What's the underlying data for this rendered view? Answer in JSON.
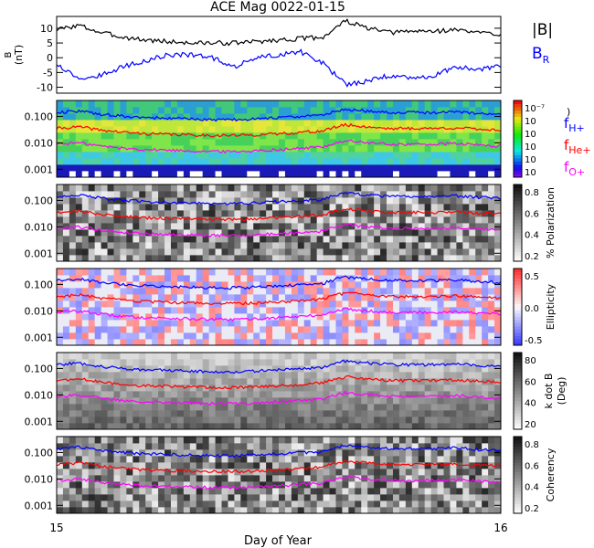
{
  "title": "ACE Mag 0022-01-15",
  "xaxis": {
    "label": "Day of Year",
    "ticks": [
      {
        "value": 15,
        "label": "15"
      },
      {
        "value": 16,
        "label": "16"
      }
    ],
    "range": [
      15,
      16
    ]
  },
  "colors": {
    "total_field": "#000000",
    "radial": "#0000ff",
    "h": "#0000ff",
    "he": "#ff0000",
    "o": "#ff00ff"
  },
  "chart_data": [
    {
      "type": "line",
      "ylabel_line1": "B",
      "ylabel_line2": "(nT)",
      "ylim": [
        -12,
        14
      ],
      "yticks": [
        {
          "value": 10,
          "label": "10"
        },
        {
          "value": 5,
          "label": "5"
        },
        {
          "value": 0,
          "label": "0"
        },
        {
          "value": -5,
          "label": "-5"
        },
        {
          "value": -10,
          "label": "-10"
        }
      ],
      "legend": [
        {
          "label": "|B|",
          "color": "#000000"
        },
        {
          "label": "B",
          "sub": "R",
          "color": "#0000ff"
        }
      ],
      "x": [
        15.0,
        15.05,
        15.1,
        15.15,
        15.2,
        15.25,
        15.3,
        15.35,
        15.4,
        15.45,
        15.5,
        15.55,
        15.6,
        15.65,
        15.7,
        15.75,
        15.8,
        15.85,
        15.9,
        15.95,
        16.0
      ],
      "series": [
        {
          "name": "|B|",
          "values": [
            9.5,
            11,
            8.5,
            7,
            6,
            5.5,
            5,
            5,
            5,
            5.5,
            6,
            6.5,
            7,
            12.5,
            10,
            8.5,
            9,
            9,
            9.5,
            8.5,
            8
          ]
        },
        {
          "name": "B_R",
          "values": [
            -2,
            -7,
            -6,
            -3,
            -1,
            1,
            1,
            0,
            -3,
            0,
            1,
            2,
            -2,
            -9,
            -8,
            -6,
            -7,
            -6,
            -3,
            -4,
            -3
          ]
        }
      ]
    },
    {
      "type": "heatmap",
      "colorbar": "rainbow",
      "colorbar_ticks": [
        "10⁻⁷",
        "10",
        "10",
        "10",
        "10",
        "10"
      ],
      "colorbar_label": ")",
      "ylim": [
        0.0005,
        0.4
      ],
      "yscale": "log",
      "yticks": [
        {
          "value": 0.1,
          "label": "0.100"
        },
        {
          "value": 0.01,
          "label": "0.010"
        },
        {
          "value": 0.001,
          "label": "0.001"
        }
      ],
      "legend": [
        {
          "label": "f",
          "sub": "H+",
          "color": "#0000ff"
        },
        {
          "label": "f",
          "sub": "He+",
          "color": "#ff0000"
        },
        {
          "label": "f",
          "sub": "O+",
          "color": "#ff00ff"
        }
      ]
    },
    {
      "type": "heatmap",
      "colorbar": "gray",
      "colorbar_ticks": [
        "0.8",
        "0.6",
        "0.4",
        "0.2"
      ],
      "colorbar_label": "% Polarization",
      "ylim": [
        0.0005,
        0.4
      ],
      "yscale": "log",
      "yticks": [
        {
          "value": 0.1,
          "label": "0.100"
        },
        {
          "value": 0.01,
          "label": "0.010"
        },
        {
          "value": 0.001,
          "label": "0.001"
        }
      ]
    },
    {
      "type": "heatmap",
      "colorbar": "bwr",
      "colorbar_ticks": [
        "0.5",
        "0.0",
        "-0.5"
      ],
      "colorbar_label": "Ellipticity",
      "ylim": [
        0.0005,
        0.4
      ],
      "yscale": "log",
      "yticks": [
        {
          "value": 0.1,
          "label": "0.100"
        },
        {
          "value": 0.01,
          "label": "0.010"
        },
        {
          "value": 0.001,
          "label": "0.001"
        }
      ]
    },
    {
      "type": "heatmap",
      "colorbar": "gray-angle",
      "colorbar_ticks": [
        "80",
        "60",
        "40",
        "20"
      ],
      "colorbar_label_line1": "k dot B",
      "colorbar_label_line2": "(Deg)",
      "ylim": [
        0.0005,
        0.4
      ],
      "yscale": "log",
      "yticks": [
        {
          "value": 0.1,
          "label": "0.100"
        },
        {
          "value": 0.01,
          "label": "0.010"
        },
        {
          "value": 0.001,
          "label": "0.001"
        }
      ]
    },
    {
      "type": "heatmap",
      "colorbar": "gray",
      "colorbar_ticks": [
        "0.8",
        "0.6",
        "0.4",
        "0.2"
      ],
      "colorbar_label": "Coherency",
      "ylim": [
        0.0005,
        0.4
      ],
      "yscale": "log",
      "yticks": [
        {
          "value": 0.1,
          "label": "0.100"
        },
        {
          "value": 0.01,
          "label": "0.010"
        },
        {
          "value": 0.001,
          "label": "0.001"
        }
      ]
    }
  ],
  "gyrofrequency_lines": {
    "x": [
      15.0,
      15.05,
      15.1,
      15.15,
      15.2,
      15.25,
      15.3,
      15.35,
      15.4,
      15.45,
      15.5,
      15.55,
      15.6,
      15.65,
      15.7,
      15.75,
      15.8,
      15.85,
      15.9,
      15.95,
      16.0
    ],
    "series": [
      {
        "name": "f_H+",
        "values": [
          0.14,
          0.16,
          0.12,
          0.1,
          0.09,
          0.085,
          0.08,
          0.075,
          0.075,
          0.08,
          0.09,
          0.1,
          0.11,
          0.19,
          0.16,
          0.14,
          0.14,
          0.14,
          0.15,
          0.13,
          0.12
        ]
      },
      {
        "name": "f_He+",
        "values": [
          0.035,
          0.04,
          0.03,
          0.025,
          0.022,
          0.021,
          0.02,
          0.019,
          0.019,
          0.02,
          0.022,
          0.025,
          0.028,
          0.048,
          0.04,
          0.035,
          0.035,
          0.035,
          0.037,
          0.033,
          0.03
        ]
      },
      {
        "name": "f_O+",
        "values": [
          0.009,
          0.01,
          0.0075,
          0.0062,
          0.0056,
          0.0053,
          0.005,
          0.0047,
          0.0047,
          0.005,
          0.0056,
          0.0062,
          0.007,
          0.012,
          0.01,
          0.0088,
          0.0088,
          0.0088,
          0.0094,
          0.0082,
          0.0075
        ]
      }
    ]
  }
}
